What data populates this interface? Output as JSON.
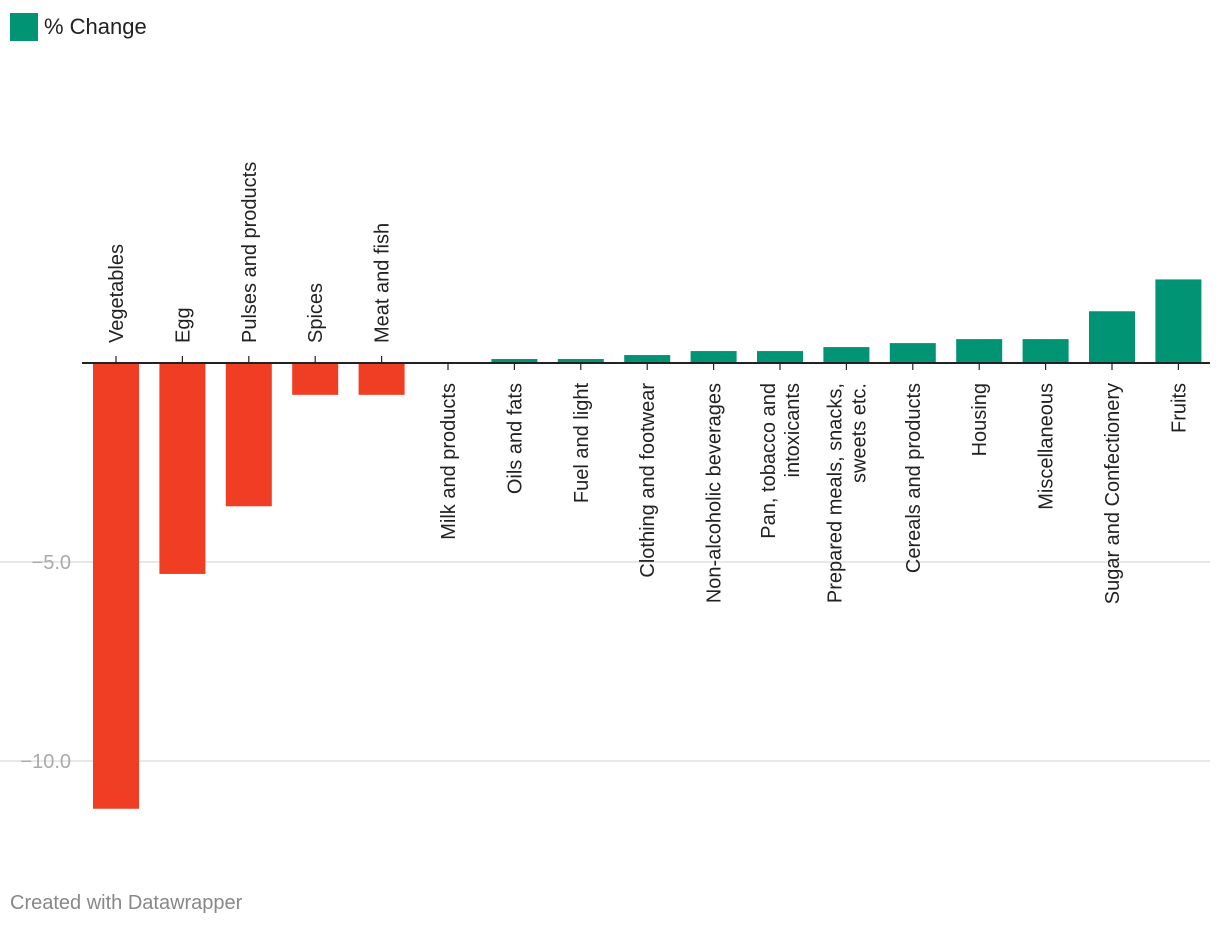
{
  "legend": {
    "label": "% Change",
    "color": "#009474"
  },
  "colors": {
    "positive": "#009474",
    "negative": "#ef3e24",
    "grid": "#e0e0e0",
    "axis": "#222222"
  },
  "footer": {
    "credit": "Created with Datawrapper"
  },
  "chart_data": {
    "type": "bar",
    "title": "",
    "xlabel": "",
    "ylabel": "",
    "ylim": [
      -11.5,
      3.5
    ],
    "yticks": [
      -5.0,
      -10.0
    ],
    "ytick_labels": [
      "−5.0",
      "−10.0"
    ],
    "series": [
      {
        "name": "% Change"
      }
    ],
    "categories": [
      {
        "label": [
          "Vegetables"
        ],
        "value": -11.2
      },
      {
        "label": [
          "Egg"
        ],
        "value": -5.3
      },
      {
        "label": [
          "Pulses and products"
        ],
        "value": -3.6
      },
      {
        "label": [
          "Spices"
        ],
        "value": -0.8
      },
      {
        "label": [
          "Meat and fish"
        ],
        "value": -0.8
      },
      {
        "label": [
          "Milk and products"
        ],
        "value": 0.0
      },
      {
        "label": [
          "Oils and fats"
        ],
        "value": 0.1
      },
      {
        "label": [
          "Fuel and light"
        ],
        "value": 0.1
      },
      {
        "label": [
          "Clothing and footwear"
        ],
        "value": 0.2
      },
      {
        "label": [
          "Non-alcoholic beverages"
        ],
        "value": 0.3
      },
      {
        "label": [
          "Pan, tobacco and",
          "intoxicants"
        ],
        "value": 0.3
      },
      {
        "label": [
          "Prepared meals, snacks,",
          "sweets etc."
        ],
        "value": 0.4
      },
      {
        "label": [
          "Cereals and products"
        ],
        "value": 0.5
      },
      {
        "label": [
          "Housing"
        ],
        "value": 0.6
      },
      {
        "label": [
          "Miscellaneous"
        ],
        "value": 0.6
      },
      {
        "label": [
          "Sugar and Confectionery"
        ],
        "value": 1.3
      },
      {
        "label": [
          "Fruits"
        ],
        "value": 2.1
      }
    ]
  }
}
